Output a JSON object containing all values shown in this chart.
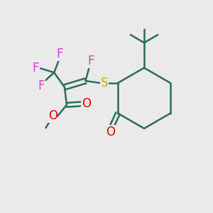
{
  "background_color": "#eaeaea",
  "bond_color": "#2d6b5e",
  "bond_width": 1.8,
  "F_color": "#cc44cc",
  "S_color": "#b8b800",
  "O_color": "#dd0000",
  "font_size": 12,
  "fig_width": 3.0,
  "fig_height": 3.0,
  "xlim": [
    0,
    10
  ],
  "ylim": [
    0,
    10
  ]
}
